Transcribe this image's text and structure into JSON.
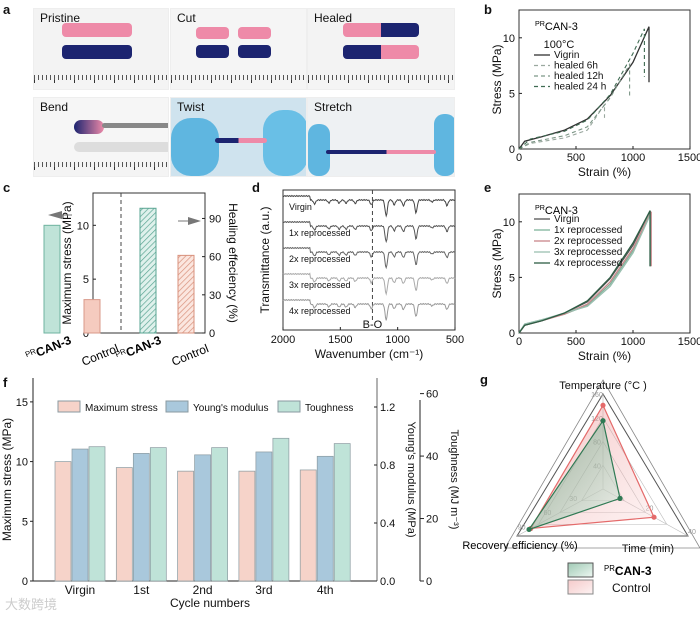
{
  "panels": {
    "a": "a",
    "b": "b",
    "c": "c",
    "d": "d",
    "e": "e",
    "f": "f",
    "g": "g"
  },
  "photos": [
    {
      "label": "Pristine"
    },
    {
      "label": "Cut"
    },
    {
      "label": "Healed"
    },
    {
      "label": "Bend"
    },
    {
      "label": "Twist"
    },
    {
      "label": "Stretch"
    }
  ],
  "watermark": "大数跨境",
  "colors": {
    "pink": "#f2c6bd",
    "blue": "#a9c8dc",
    "mint": "#bfe3d8",
    "teal": "#9fd6c8",
    "salmon": "#f2c1b4",
    "green": "#4e8f6a",
    "red": "#e46a6a"
  },
  "chart_data": [
    {
      "id": "b",
      "type": "line",
      "title_prefix": "PR",
      "title": "CAN-3",
      "subtitle": "100°C",
      "xlabel": "Strain (%)",
      "ylabel": "Stress (MPa)",
      "xlim": [
        0,
        1500
      ],
      "ylim": [
        0,
        12.5
      ],
      "xticks": [
        0,
        500,
        1000,
        1500
      ],
      "yticks": [
        0,
        5,
        10
      ],
      "series": [
        {
          "name": "Vigrin",
          "dash": false,
          "color": "#333333",
          "points": [
            [
              0,
              0
            ],
            [
              50,
              0.7
            ],
            [
              200,
              1.1
            ],
            [
              400,
              1.7
            ],
            [
              600,
              2.7
            ],
            [
              800,
              4.8
            ],
            [
              1000,
              7.8
            ],
            [
              1140,
              11
            ],
            [
              1140,
              6
            ]
          ]
        },
        {
          "name": "healed  6h",
          "dash": true,
          "color": "#9aa89f",
          "points": [
            [
              0,
              0
            ],
            [
              100,
              0.5
            ],
            [
              400,
              1.0
            ],
            [
              600,
              1.7
            ],
            [
              750,
              4.0
            ],
            [
              750,
              2.8
            ]
          ]
        },
        {
          "name": "healed  12h",
          "dash": true,
          "color": "#7c9686",
          "points": [
            [
              0,
              0
            ],
            [
              100,
              0.6
            ],
            [
              400,
              1.2
            ],
            [
              600,
              2.0
            ],
            [
              800,
              4.6
            ],
            [
              970,
              7.6
            ],
            [
              970,
              4.6
            ]
          ]
        },
        {
          "name": "healed  24 h",
          "dash": true,
          "color": "#3f6b52",
          "points": [
            [
              0,
              0
            ],
            [
              100,
              0.9
            ],
            [
              400,
              1.6
            ],
            [
              600,
              2.6
            ],
            [
              800,
              4.9
            ],
            [
              1000,
              8.6
            ],
            [
              1100,
              10.8
            ],
            [
              1100,
              6.5
            ]
          ]
        }
      ]
    },
    {
      "id": "c",
      "type": "bar",
      "ylabel_left": "Maximum stress (MPa)",
      "ylabel_right": "Healing effeciency (%)",
      "ylim_left": [
        0,
        13
      ],
      "ylim_right": [
        0,
        110
      ],
      "yticks_left": [
        0,
        5,
        10
      ],
      "yticks_right": [
        0,
        30,
        60,
        90
      ],
      "categories": [
        {
          "prefix": "PR",
          "name": "CAN-3"
        },
        {
          "prefix": "",
          "name": "Control"
        },
        {
          "prefix": "PR",
          "name": "CAN-3"
        },
        {
          "prefix": "",
          "name": "Control"
        }
      ],
      "max_stress": [
        10.0,
        3.1
      ],
      "healing_efficiency": [
        98,
        61
      ]
    },
    {
      "id": "d",
      "type": "line",
      "xlabel": "Wavenumber (cm⁻¹)",
      "ylabel": "Transmittance (a.u.)",
      "xlim": [
        2000,
        500
      ],
      "xticks": [
        2000,
        1500,
        1000,
        500
      ],
      "annotation": "B-O",
      "annotation_x": 1220,
      "series": [
        "Virgin",
        "1x reprocessed",
        "2x reprocessed",
        "3x reprocessed",
        "4x reprocessed"
      ],
      "series_colors": [
        "#444444",
        "#555555",
        "#666666",
        "#aaaaaa",
        "#999999"
      ],
      "peaks": [
        [
          1725,
          0.25
        ],
        [
          1600,
          0.18
        ],
        [
          1510,
          0.2
        ],
        [
          1450,
          0.2
        ],
        [
          1370,
          0.22
        ],
        [
          1230,
          0.3
        ],
        [
          1100,
          1.0
        ],
        [
          1030,
          0.3
        ],
        [
          950,
          0.35
        ],
        [
          840,
          0.8
        ],
        [
          700,
          0.12
        ],
        [
          570,
          0.35
        ]
      ]
    },
    {
      "id": "e",
      "type": "line",
      "title_prefix": "PR",
      "title": "CAN-3",
      "xlabel": "Strain (%)",
      "ylabel": "Stress (MPa)",
      "xlim": [
        0,
        1500
      ],
      "ylim": [
        0,
        12.5
      ],
      "xticks": [
        0,
        500,
        1000,
        1500
      ],
      "yticks": [
        0,
        5,
        10
      ],
      "series": [
        {
          "name": "Virgin",
          "color": "#555555",
          "points": [
            [
              0,
              0
            ],
            [
              50,
              0.7
            ],
            [
              200,
              1.1
            ],
            [
              400,
              1.8
            ],
            [
              600,
              2.8
            ],
            [
              800,
              4.9
            ],
            [
              1000,
              7.9
            ],
            [
              1150,
              11
            ],
            [
              1150,
              6
            ]
          ]
        },
        {
          "name": "1x reprocessed",
          "color": "#7fb39a",
          "points": [
            [
              0,
              0
            ],
            [
              50,
              0.8
            ],
            [
              200,
              1.2
            ],
            [
              400,
              1.7
            ],
            [
              600,
              2.5
            ],
            [
              800,
              4.4
            ],
            [
              1000,
              7.4
            ],
            [
              1150,
              10.8
            ],
            [
              1150,
              6
            ]
          ]
        },
        {
          "name": "2x reprocessed",
          "color": "#c9868a",
          "points": [
            [
              0,
              0
            ],
            [
              50,
              0.7
            ],
            [
              200,
              1.1
            ],
            [
              400,
              1.7
            ],
            [
              600,
              2.6
            ],
            [
              800,
              4.6
            ],
            [
              1000,
              7.6
            ],
            [
              1160,
              10.9
            ],
            [
              1160,
              6
            ]
          ]
        },
        {
          "name": "3x reprocessed",
          "color": "#9abfb0",
          "points": [
            [
              0,
              0
            ],
            [
              50,
              0.8
            ],
            [
              200,
              1.2
            ],
            [
              400,
              1.8
            ],
            [
              600,
              2.4
            ],
            [
              800,
              4.2
            ],
            [
              1000,
              7.2
            ],
            [
              1150,
              10.6
            ],
            [
              1150,
              6
            ]
          ]
        },
        {
          "name": "4x reprocessed",
          "color": "#2e5e45",
          "points": [
            [
              0,
              0
            ],
            [
              50,
              0.7
            ],
            [
              200,
              1.1
            ],
            [
              400,
              1.8
            ],
            [
              600,
              2.9
            ],
            [
              800,
              5.0
            ],
            [
              1000,
              8.1
            ],
            [
              1150,
              11
            ],
            [
              1150,
              6
            ]
          ]
        }
      ]
    },
    {
      "id": "f",
      "type": "bar",
      "xlabel": "Cycle numbers",
      "ylabel": "Maximum stress (MPa)",
      "ylabel2": "Young's modulus (MPa)",
      "ylabel3": "Toughness (MJ m⁻³)",
      "ylim": [
        0,
        17
      ],
      "yticks": [
        0,
        5,
        10,
        15
      ],
      "ylim2": [
        0,
        1.4
      ],
      "yticks2": [
        "0.0",
        "0.4",
        "0.8",
        "1.2"
      ],
      "ylim3": [
        0,
        65
      ],
      "yticks3": [
        0,
        20,
        40,
        60
      ],
      "categories": [
        "Virgin",
        "1st",
        "2nd",
        "3rd",
        "4th"
      ],
      "series": [
        {
          "name": "Maximum stress",
          "axis": 1,
          "values": [
            10.0,
            9.5,
            9.2,
            9.2,
            9.3
          ]
        },
        {
          "name": "Young's modulus",
          "axis": 2,
          "values": [
            0.91,
            0.88,
            0.87,
            0.89,
            0.86
          ]
        },
        {
          "name": "Toughness",
          "axis": 3,
          "values": [
            43,
            42.7,
            42.7,
            45.7,
            44
          ]
        }
      ]
    },
    {
      "id": "g",
      "type": "radar",
      "axes": [
        {
          "name": "Temperature (°C )",
          "max": 160,
          "ticks": [
            40,
            80,
            120,
            160
          ]
        },
        {
          "name": "Time (min)",
          "max": 40,
          "ticks": [
            20,
            40
          ]
        },
        {
          "name": "Recovery efficiency (%)",
          "max": 100,
          "ticks": [
            30,
            60,
            90
          ]
        }
      ],
      "series": [
        {
          "prefix": "PR",
          "name": "CAN-3",
          "values": [
            115,
            8,
            86
          ]
        },
        {
          "prefix": "",
          "name": "Control",
          "values": [
            141,
            24,
            84
          ]
        }
      ]
    }
  ]
}
